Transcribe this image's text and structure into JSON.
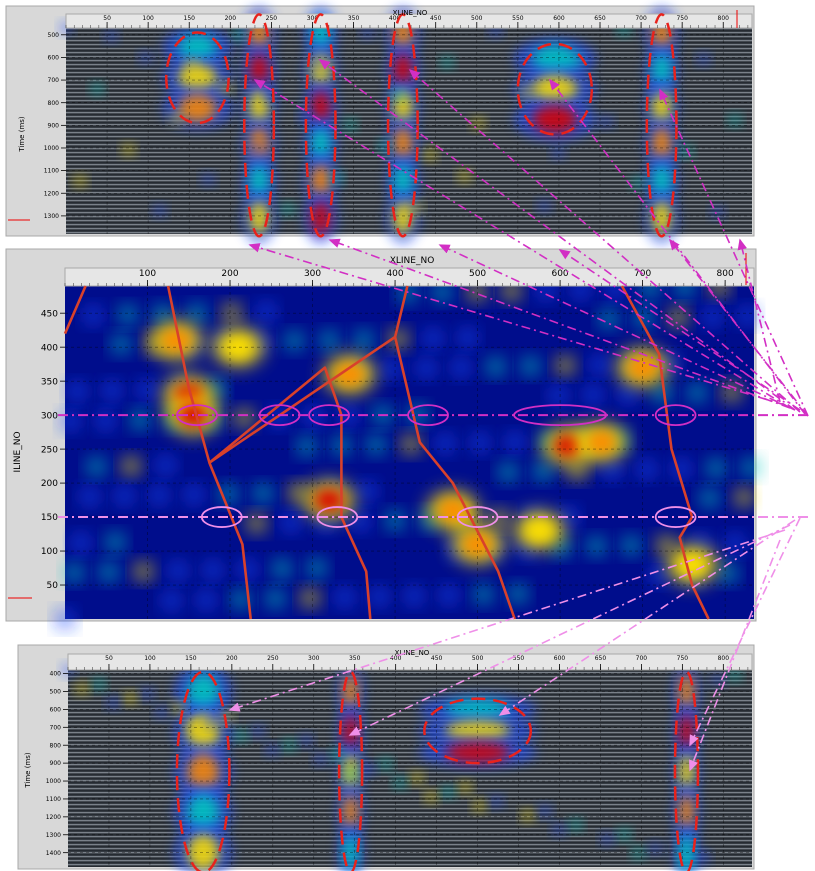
{
  "colors": {
    "background": "#ffffff",
    "axis_frame": "#a8a8a8",
    "map_background": "#000d8c",
    "seismic_background": "#333b44",
    "fault_line": "#d8412b",
    "dashed_ellipse": "#e8221c",
    "magenta_guide": "#d22fc4",
    "pink_guide": "#ef8fe8",
    "hot": "#d90000",
    "warm": "#ffe200",
    "mid": "#00c9c0",
    "cool": "#1a4bff"
  },
  "chart_data": [
    {
      "type": "heatmap",
      "panel": "top-seismic-section",
      "title": "XLINE_NO",
      "xlabel": "",
      "ylabel": "Time (ms)",
      "x_ticks": [
        50,
        100,
        150,
        200,
        250,
        300,
        350,
        400,
        450,
        500,
        550,
        600,
        650,
        700,
        750,
        800
      ],
      "y_ticks": [
        500,
        600,
        700,
        800,
        900,
        1000,
        1100,
        1200,
        1300
      ],
      "xlim": [
        0,
        835
      ],
      "ylim": [
        1380,
        470
      ],
      "y_inverted": true,
      "grid": true,
      "highlighted_zones": [
        {
          "x_center": 160,
          "y_center": 690,
          "x_halfwidth": 38,
          "y_halfwidth": 200
        },
        {
          "x_center": 235,
          "y_center": 900,
          "x_halfwidth": 18,
          "y_halfwidth": 490
        },
        {
          "x_center": 310,
          "y_center": 900,
          "x_halfwidth": 18,
          "y_halfwidth": 490
        },
        {
          "x_center": 410,
          "y_center": 900,
          "x_halfwidth": 18,
          "y_halfwidth": 490
        },
        {
          "x_center": 595,
          "y_center": 740,
          "x_halfwidth": 45,
          "y_halfwidth": 200
        },
        {
          "x_center": 725,
          "y_center": 900,
          "x_halfwidth": 18,
          "y_halfwidth": 490
        }
      ]
    },
    {
      "type": "heatmap",
      "panel": "middle-map",
      "title": "XLINE_NO",
      "xlabel": "",
      "ylabel": "ILINE_NO",
      "x_ticks": [
        100,
        200,
        300,
        400,
        500,
        600,
        700,
        800
      ],
      "y_ticks": [
        50,
        100,
        150,
        200,
        250,
        300,
        350,
        400,
        450
      ],
      "xlim": [
        0,
        835
      ],
      "ylim": [
        0,
        490
      ],
      "grid": true,
      "faults": [
        {
          "points": [
            [
              0,
              420
            ],
            [
              25,
              490
            ]
          ]
        },
        {
          "points": [
            [
              125,
              490
            ],
            [
              150,
              340
            ],
            [
              175,
              230
            ],
            [
              215,
              110
            ],
            [
              225,
              0
            ]
          ]
        },
        {
          "points": [
            [
              175,
              230
            ],
            [
              315,
              370
            ],
            [
              335,
              300
            ],
            [
              335,
              150
            ],
            [
              365,
              70
            ],
            [
              370,
              0
            ]
          ]
        },
        {
          "points": [
            [
              175,
              230
            ],
            [
              400,
              415
            ],
            [
              415,
              490
            ]
          ]
        },
        {
          "points": [
            [
              400,
              415
            ],
            [
              430,
              260
            ],
            [
              470,
              200
            ],
            [
              525,
              70
            ],
            [
              545,
              0
            ]
          ]
        },
        {
          "points": [
            [
              675,
              490
            ],
            [
              720,
              390
            ],
            [
              735,
              250
            ],
            [
              760,
              150
            ],
            [
              745,
              120
            ],
            [
              760,
              50
            ],
            [
              780,
              0
            ]
          ]
        }
      ],
      "guide_lines": [
        {
          "iline": 300,
          "style": "dash-dot",
          "color": "magenta"
        },
        {
          "iline": 150,
          "style": "dash-dot",
          "color": "pink"
        }
      ],
      "markers": [
        {
          "iline": 300,
          "xlines": [
            160,
            260,
            320,
            440,
            600,
            740
          ]
        },
        {
          "iline": 150,
          "xlines": [
            190,
            330,
            500,
            740
          ]
        }
      ],
      "hotspots": [
        {
          "x": 150,
          "y": 330,
          "value": 1.0
        },
        {
          "x": 155,
          "y": 300,
          "value": 0.95
        },
        {
          "x": 135,
          "y": 410,
          "value": 0.85
        },
        {
          "x": 320,
          "y": 175,
          "value": 0.95
        },
        {
          "x": 345,
          "y": 360,
          "value": 0.7
        },
        {
          "x": 610,
          "y": 255,
          "value": 1.0
        },
        {
          "x": 650,
          "y": 260,
          "value": 0.8
        },
        {
          "x": 700,
          "y": 370,
          "value": 0.75
        },
        {
          "x": 470,
          "y": 160,
          "value": 0.8
        },
        {
          "x": 500,
          "y": 110,
          "value": 0.7
        },
        {
          "x": 210,
          "y": 400,
          "value": 0.6
        },
        {
          "x": 575,
          "y": 130,
          "value": 0.65
        },
        {
          "x": 760,
          "y": 80,
          "value": 0.6
        }
      ]
    },
    {
      "type": "heatmap",
      "panel": "bottom-seismic-section",
      "title": "XLINE_NO",
      "xlabel": "",
      "ylabel": "Time (ms)",
      "x_ticks": [
        50,
        100,
        150,
        200,
        250,
        300,
        350,
        400,
        450,
        500,
        550,
        600,
        650,
        700,
        750,
        800
      ],
      "y_ticks": [
        400,
        500,
        600,
        700,
        800,
        900,
        1000,
        1100,
        1200,
        1300,
        1400
      ],
      "xlim": [
        0,
        835
      ],
      "ylim": [
        1480,
        380
      ],
      "y_inverted": true,
      "grid": true,
      "highlighted_zones": [
        {
          "x_center": 165,
          "y_center": 950,
          "x_halfwidth": 32,
          "y_halfwidth": 560
        },
        {
          "x_center": 345,
          "y_center": 950,
          "x_halfwidth": 14,
          "y_halfwidth": 560
        },
        {
          "x_center": 500,
          "y_center": 720,
          "x_halfwidth": 65,
          "y_halfwidth": 180
        },
        {
          "x_center": 755,
          "y_center": 950,
          "x_halfwidth": 14,
          "y_halfwidth": 560
        }
      ]
    }
  ]
}
